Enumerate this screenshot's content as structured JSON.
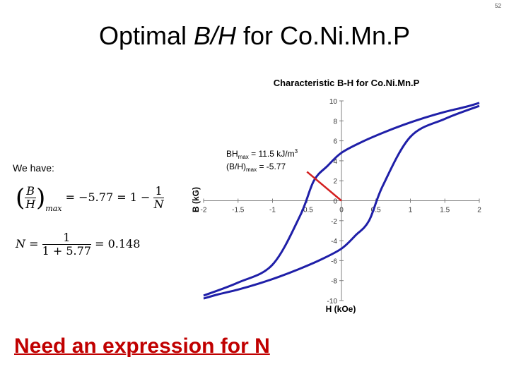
{
  "page_number": "52",
  "title": {
    "prefix": "Optimal ",
    "italic": "B/H",
    "suffix": " for Co.Ni.Mn.P"
  },
  "we_have": "We have:",
  "equations": {
    "eq1": {
      "num": "B",
      "den": "H",
      "sub": "max",
      "rhs": "= −5.77 = 1 −",
      "rnum": "1",
      "rden": "N"
    },
    "eq2": {
      "lhs": "N =",
      "num": "1",
      "den": "1 + 5.77",
      "rhs": "= 0.148"
    }
  },
  "footer": "Need an expression for N",
  "colors": {
    "curve": "#1f1fa8",
    "line": "#d42020",
    "footer": "#c00000"
  },
  "chart_data": {
    "type": "line",
    "title": "Characteristic B-H for Co.Ni.Mn.P",
    "xlabel": "H (kOe)",
    "ylabel": "B (kG)",
    "xlim": [
      -2,
      2
    ],
    "ylim": [
      -10,
      10
    ],
    "x_ticks": [
      "-2",
      "-1.5",
      "-1",
      "-0.5",
      "0",
      "0.5",
      "1",
      "1.5",
      "2"
    ],
    "y_ticks": [
      "10",
      "8",
      "6",
      "4",
      "2",
      "0",
      "-2",
      "-4",
      "-6",
      "-8",
      "-10"
    ],
    "series": [
      {
        "x": [
          -2,
          -1.5,
          -1,
          -0.6,
          -0.4,
          -0.2,
          0,
          0.3,
          0.6,
          0.9,
          1.2,
          1.5,
          1.8,
          2
        ],
        "y": [
          -9.5,
          -8.2,
          -6.4,
          -1.5,
          2.0,
          3.5,
          4.8,
          5.9,
          6.8,
          7.6,
          8.3,
          8.9,
          9.4,
          9.8
        ]
      },
      {
        "x": [
          2,
          1.5,
          1,
          0.6,
          0.4,
          0.2,
          0,
          -0.3,
          -0.6,
          -0.9,
          -1.2,
          -1.5,
          -1.8,
          -2
        ],
        "y": [
          9.5,
          8.2,
          6.4,
          1.5,
          -2.0,
          -3.5,
          -4.8,
          -5.9,
          -6.8,
          -7.6,
          -8.3,
          -8.9,
          -9.4,
          -9.8
        ]
      }
    ],
    "load_line": {
      "x": [
        0,
        -0.5
      ],
      "y": [
        0,
        2.9
      ]
    },
    "annotation": {
      "bh_prefix": "BH",
      "bh_sub": "max",
      "bh_value": " = 11.5 kJ/m",
      "bh_sup": "3",
      "r_prefix": "(B/H)",
      "r_sub": "max",
      "r_value": " = -5.77"
    }
  }
}
